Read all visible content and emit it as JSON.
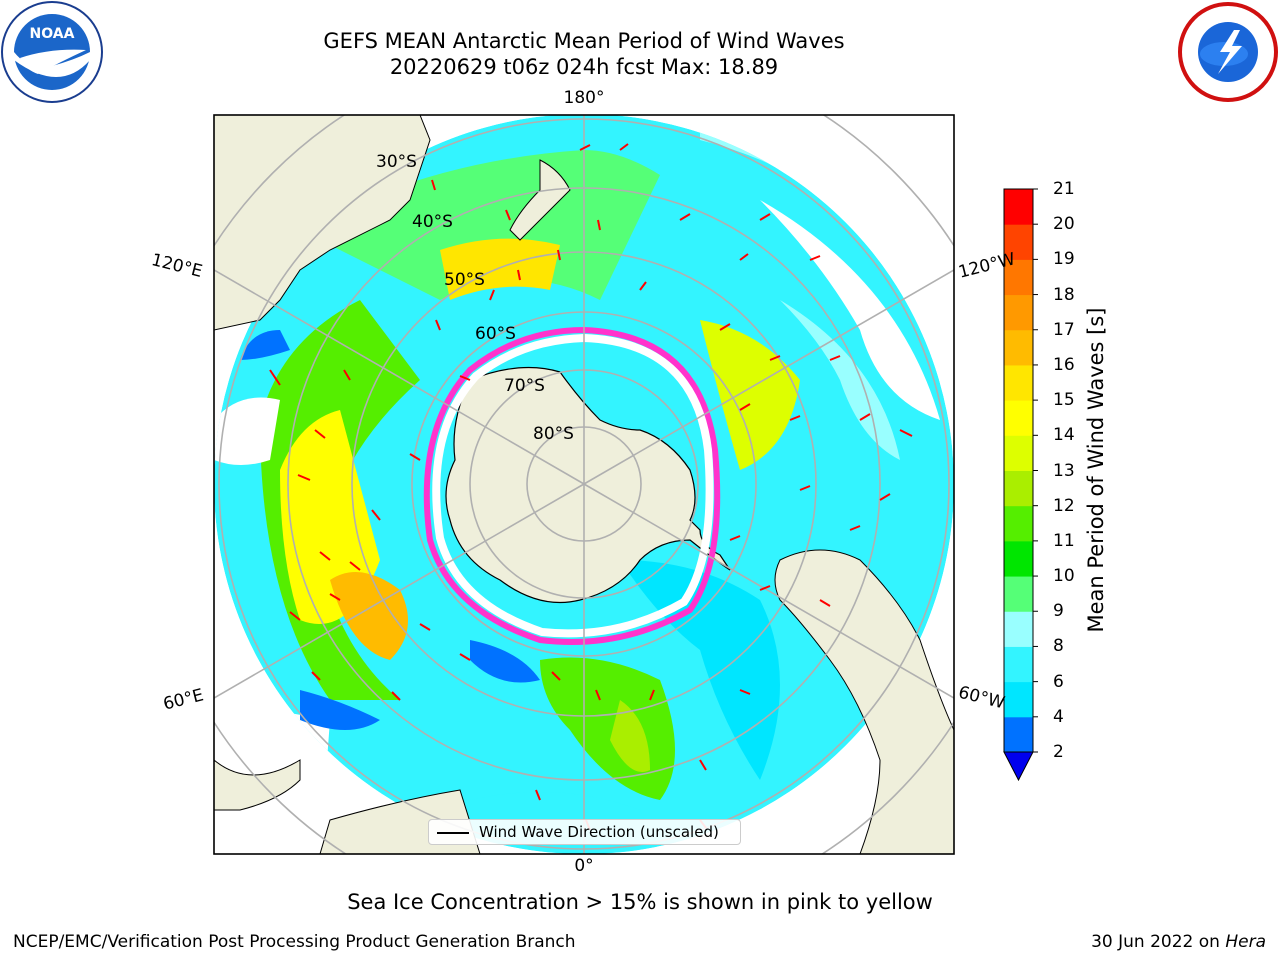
{
  "header": {
    "title_line1": "GEFS MEAN Antarctic Mean Period of Wind Waves",
    "title_line2": "20220629 t06z 024h fcst   Max: 18.89"
  },
  "map": {
    "projection": "south polar stereographic",
    "longitude_labels": {
      "top": "180°",
      "bottom": "0°",
      "upper_left": "120°E",
      "upper_right": "120°W",
      "lower_left": "60°E",
      "lower_right": "60°W"
    },
    "latitude_labels": [
      "30°S",
      "40°S",
      "50°S",
      "60°S",
      "70°S",
      "80°S"
    ],
    "colors": {
      "land": "#efefdb",
      "coastline": "#000000",
      "grid": "#b0b0b0",
      "arrows": "#ff0000",
      "sea_ice_edge": "#ff33cc"
    }
  },
  "legend": {
    "label": "Wind Wave Direction (unscaled)"
  },
  "colorbar": {
    "title": "Mean Period of Wind Waves [s]",
    "ticks": [
      "2",
      "4",
      "6",
      "8",
      "9",
      "10",
      "11",
      "12",
      "13",
      "14",
      "15",
      "16",
      "17",
      "18",
      "19",
      "20",
      "21"
    ],
    "colors": [
      "#0072ff",
      "#00e6ff",
      "#33f4ff",
      "#99ffff",
      "#55ff77",
      "#00e600",
      "#55ee00",
      "#aaee00",
      "#ddff00",
      "#ffff00",
      "#ffe600",
      "#ffbb00",
      "#ff9900",
      "#ff7700",
      "#ff4400",
      "#ff0000"
    ],
    "extend_min_color": "#0000ee"
  },
  "captions": {
    "sea_ice": "Sea Ice Concentration > 15% is shown in pink to yellow",
    "footer_left": "NCEP/EMC/Verification Post Processing Product Generation Branch",
    "footer_right_prefix": "30 Jun 2022 on ",
    "footer_right_host": "Hera"
  },
  "logos": {
    "noaa_text": "NOAA"
  }
}
